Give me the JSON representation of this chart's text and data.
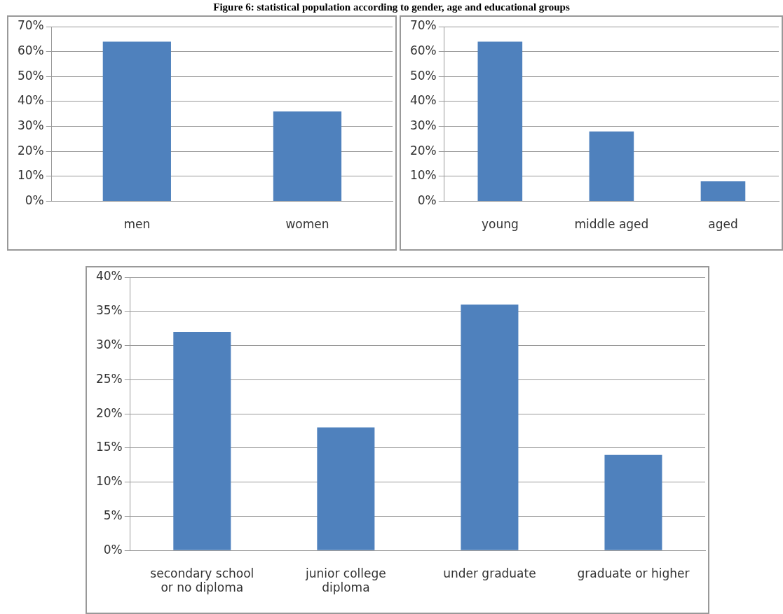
{
  "chart_data": [
    {
      "type": "bar",
      "title": "Figure 6: statistical population according to gender, age and educational groups",
      "categories": [
        "men",
        "women"
      ],
      "values": [
        64,
        36
      ],
      "color": "#4f81bd",
      "ylim": [
        0,
        70
      ],
      "yticks": [
        {
          "value": 0,
          "label": "0%"
        },
        {
          "value": 10,
          "label": "10%"
        },
        {
          "value": 20,
          "label": "20%"
        },
        {
          "value": 30,
          "label": "30%"
        },
        {
          "value": 40,
          "label": "40%"
        },
        {
          "value": 50,
          "label": "50%"
        },
        {
          "value": 60,
          "label": "60%"
        },
        {
          "value": 70,
          "label": "70%"
        }
      ],
      "grid": "y"
    },
    {
      "type": "bar",
      "categories": [
        "young",
        "middle aged",
        "aged"
      ],
      "values": [
        64,
        28,
        8
      ],
      "color": "#4f81bd",
      "ylim": [
        0,
        70
      ],
      "yticks": [
        {
          "value": 0,
          "label": "0%"
        },
        {
          "value": 10,
          "label": "10%"
        },
        {
          "value": 20,
          "label": "20%"
        },
        {
          "value": 30,
          "label": "30%"
        },
        {
          "value": 40,
          "label": "40%"
        },
        {
          "value": 50,
          "label": "50%"
        },
        {
          "value": 60,
          "label": "60%"
        },
        {
          "value": 70,
          "label": "70%"
        }
      ],
      "grid": "y"
    },
    {
      "type": "bar",
      "categories": [
        "secondary school\nor no diploma",
        "junior college\ndiploma",
        "under graduate",
        "graduate or higher"
      ],
      "values": [
        32,
        18,
        36,
        14
      ],
      "color": "#4f81bd",
      "ylim": [
        0,
        40
      ],
      "yticks": [
        {
          "value": 0,
          "label": "0%"
        },
        {
          "value": 5,
          "label": "5%"
        },
        {
          "value": 10,
          "label": "10%"
        },
        {
          "value": 15,
          "label": "15%"
        },
        {
          "value": 20,
          "label": "20%"
        },
        {
          "value": 25,
          "label": "25%"
        },
        {
          "value": 30,
          "label": "30%"
        },
        {
          "value": 35,
          "label": "35%"
        },
        {
          "value": 40,
          "label": "40%"
        }
      ],
      "grid": "y"
    }
  ]
}
